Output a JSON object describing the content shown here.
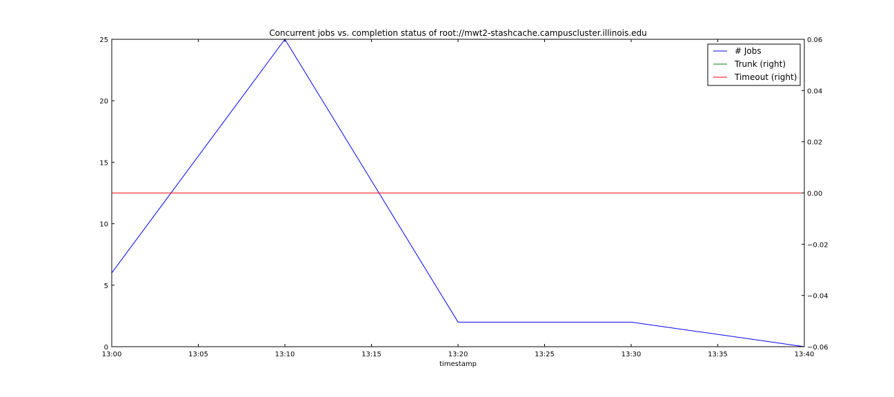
{
  "chart_data": {
    "type": "line",
    "title": "Concurrent jobs vs. completion status of root://mwt2-stashcache.campuscluster.illinois.edu",
    "xlabel": "timestamp",
    "ylabel": "",
    "x": [
      "13:00",
      "13:10",
      "13:20",
      "13:30",
      "13:40"
    ],
    "x_minutes": [
      0,
      10,
      20,
      30,
      40
    ],
    "xticks": [
      "13:00",
      "13:05",
      "13:10",
      "13:15",
      "13:20",
      "13:25",
      "13:30",
      "13:35",
      "13:40"
    ],
    "xlim": [
      "13:00",
      "13:40"
    ],
    "ylim_left": [
      0,
      25
    ],
    "yticks_left": [
      "0",
      "5",
      "10",
      "15",
      "20",
      "25"
    ],
    "ylim_right": [
      -0.06,
      0.06
    ],
    "yticks_right": [
      "−0.06",
      "−0.04",
      "−0.02",
      "0.00",
      "0.02",
      "0.04",
      "0.06"
    ],
    "grid": false,
    "legend_position": "top-right",
    "series": [
      {
        "name": "# Jobs",
        "axis": "left",
        "color": "#0000ff",
        "values": [
          6,
          25,
          2,
          2,
          0
        ]
      },
      {
        "name": "Trunk (right)",
        "axis": "right",
        "color": "#008000",
        "values": [
          0,
          0,
          0,
          0,
          0
        ]
      },
      {
        "name": "Timeout (right)",
        "axis": "right",
        "color": "#ff0000",
        "values": [
          0,
          0,
          0,
          0,
          0
        ]
      }
    ]
  }
}
